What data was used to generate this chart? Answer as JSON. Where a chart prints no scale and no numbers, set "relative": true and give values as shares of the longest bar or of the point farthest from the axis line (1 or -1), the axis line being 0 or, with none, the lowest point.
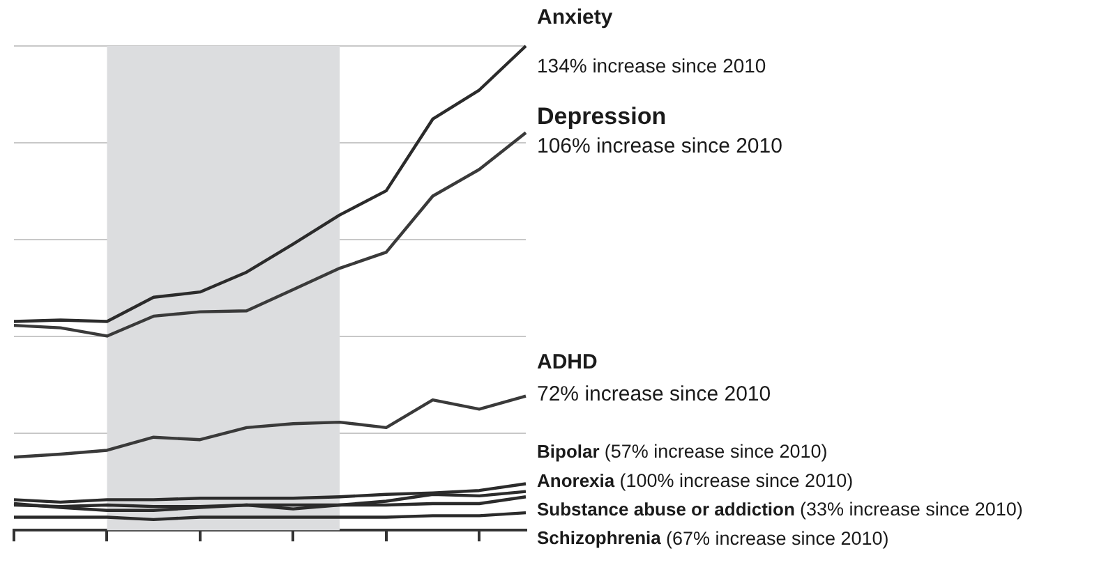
{
  "chart_data": {
    "type": "line",
    "relative": true,
    "categories": [
      null,
      null,
      null,
      null,
      null,
      null,
      null,
      null,
      null,
      null,
      null,
      null
    ],
    "series": [
      {
        "name": "Anxiety",
        "color": "#2b2b2b",
        "values": [
          0.431,
          0.434,
          0.431,
          0.481,
          0.492,
          0.533,
          0.591,
          0.651,
          0.701,
          0.849,
          0.909,
          1
        ]
      },
      {
        "name": "Depression",
        "color": "#3a3a3a",
        "values": [
          0.423,
          0.418,
          0.401,
          0.442,
          0.451,
          0.453,
          0.497,
          0.541,
          0.574,
          0.69,
          0.745,
          0.821
        ]
      },
      {
        "name": "ADHD",
        "color": "#3a3a3a",
        "values": [
          0.151,
          0.157,
          0.165,
          0.192,
          0.187,
          0.212,
          0.22,
          0.223,
          0.212,
          0.269,
          0.25,
          0.277
        ]
      },
      {
        "name": "Bipolar",
        "color": "#2b2b2b",
        "values": [
          0.063,
          0.058,
          0.063,
          0.063,
          0.066,
          0.066,
          0.066,
          0.069,
          0.074,
          0.077,
          0.082,
          0.096
        ]
      },
      {
        "name": "Anorexia",
        "color": "#2b2b2b",
        "values": [
          0.055,
          0.047,
          0.041,
          0.041,
          0.047,
          0.052,
          0.044,
          0.052,
          0.06,
          0.074,
          0.071,
          0.08
        ]
      },
      {
        "name": "Substance abuse or addiction",
        "color": "#2b2b2b",
        "values": [
          0.052,
          0.049,
          0.052,
          0.049,
          0.049,
          0.052,
          0.052,
          0.052,
          0.052,
          0.055,
          0.055,
          0.069
        ]
      },
      {
        "name": "Schizophrenia",
        "color": "#2b2b2b",
        "values": [
          0.027,
          0.027,
          0.027,
          0.022,
          0.027,
          0.027,
          0.027,
          0.027,
          0.027,
          0.03,
          0.03,
          0.036
        ]
      }
    ],
    "annotations": [
      "134% increase since 2010",
      "106% increase since 2010",
      "72% increase since 2010",
      "(57% increase since 2010)",
      "(100% increase since 2010)",
      "(33% increase since 2010)",
      "(67% increase since 2010)"
    ],
    "grid": "y",
    "legend": false,
    "marker": "none",
    "line_style": "solid"
  }
}
